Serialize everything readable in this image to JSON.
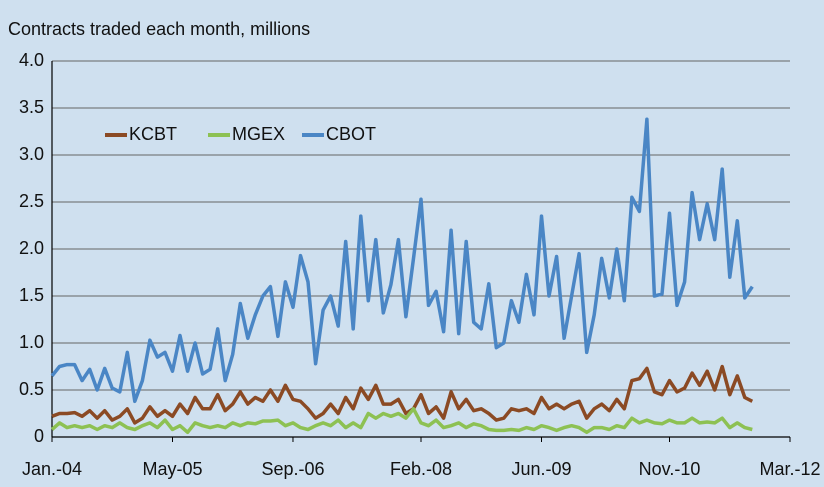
{
  "chart_data": {
    "type": "line",
    "title": "Contracts traded each month, millions",
    "x": [
      "2004-01",
      "2004-02",
      "2004-03",
      "2004-04",
      "2004-05",
      "2004-06",
      "2004-07",
      "2004-08",
      "2004-09",
      "2004-10",
      "2004-11",
      "2004-12",
      "2005-01",
      "2005-02",
      "2005-03",
      "2005-04",
      "2005-05",
      "2005-06",
      "2005-07",
      "2005-08",
      "2005-09",
      "2005-10",
      "2005-11",
      "2005-12",
      "2006-01",
      "2006-02",
      "2006-03",
      "2006-04",
      "2006-05",
      "2006-06",
      "2006-07",
      "2006-08",
      "2006-09",
      "2006-10",
      "2006-11",
      "2006-12",
      "2007-01",
      "2007-02",
      "2007-03",
      "2007-04",
      "2007-05",
      "2007-06",
      "2007-07",
      "2007-08",
      "2007-09",
      "2007-10",
      "2007-11",
      "2007-12",
      "2008-01",
      "2008-02",
      "2008-03",
      "2008-04",
      "2008-05",
      "2008-06",
      "2008-07",
      "2008-08",
      "2008-09",
      "2008-10",
      "2008-11",
      "2008-12",
      "2009-01",
      "2009-02",
      "2009-03",
      "2009-04",
      "2009-05",
      "2009-06",
      "2009-07",
      "2009-08",
      "2009-09",
      "2009-10",
      "2009-11",
      "2009-12",
      "2010-01",
      "2010-02",
      "2010-03",
      "2010-04",
      "2010-05",
      "2010-06",
      "2010-07",
      "2010-08",
      "2010-09",
      "2010-10",
      "2010-11",
      "2010-12",
      "2011-01",
      "2011-02",
      "2011-03",
      "2011-04",
      "2011-05",
      "2011-06",
      "2011-07",
      "2011-08",
      "2011-09",
      "2011-10"
    ],
    "series": [
      {
        "name": "KCBT",
        "color": "#8b4a24",
        "values": [
          0.22,
          0.25,
          0.25,
          0.26,
          0.22,
          0.28,
          0.2,
          0.28,
          0.18,
          0.22,
          0.3,
          0.15,
          0.2,
          0.32,
          0.22,
          0.28,
          0.22,
          0.35,
          0.25,
          0.42,
          0.3,
          0.3,
          0.45,
          0.28,
          0.35,
          0.48,
          0.35,
          0.42,
          0.38,
          0.5,
          0.38,
          0.55,
          0.4,
          0.38,
          0.3,
          0.2,
          0.25,
          0.35,
          0.25,
          0.42,
          0.3,
          0.52,
          0.4,
          0.55,
          0.35,
          0.35,
          0.4,
          0.25,
          0.3,
          0.45,
          0.25,
          0.32,
          0.2,
          0.48,
          0.3,
          0.4,
          0.28,
          0.3,
          0.25,
          0.18,
          0.2,
          0.3,
          0.28,
          0.3,
          0.25,
          0.42,
          0.3,
          0.35,
          0.3,
          0.35,
          0.38,
          0.2,
          0.3,
          0.35,
          0.28,
          0.4,
          0.3,
          0.6,
          0.62,
          0.73,
          0.48,
          0.45,
          0.6,
          0.48,
          0.52,
          0.68,
          0.55,
          0.7,
          0.5,
          0.75,
          0.45,
          0.65,
          0.42,
          0.38
        ]
      },
      {
        "name": "MGEX",
        "color": "#8dc153",
        "values": [
          0.08,
          0.15,
          0.1,
          0.12,
          0.1,
          0.12,
          0.08,
          0.12,
          0.1,
          0.15,
          0.1,
          0.08,
          0.12,
          0.15,
          0.1,
          0.18,
          0.08,
          0.12,
          0.05,
          0.15,
          0.12,
          0.1,
          0.12,
          0.1,
          0.15,
          0.12,
          0.15,
          0.14,
          0.17,
          0.17,
          0.18,
          0.12,
          0.15,
          0.1,
          0.08,
          0.12,
          0.15,
          0.12,
          0.18,
          0.1,
          0.15,
          0.1,
          0.25,
          0.2,
          0.25,
          0.22,
          0.25,
          0.2,
          0.3,
          0.15,
          0.12,
          0.18,
          0.1,
          0.12,
          0.15,
          0.1,
          0.14,
          0.12,
          0.08,
          0.07,
          0.07,
          0.08,
          0.07,
          0.1,
          0.08,
          0.12,
          0.1,
          0.07,
          0.1,
          0.12,
          0.1,
          0.05,
          0.1,
          0.1,
          0.08,
          0.12,
          0.1,
          0.2,
          0.15,
          0.18,
          0.15,
          0.14,
          0.18,
          0.15,
          0.15,
          0.2,
          0.15,
          0.16,
          0.15,
          0.2,
          0.1,
          0.15,
          0.1,
          0.08
        ]
      },
      {
        "name": "CBOT",
        "color": "#4a86c5",
        "values": [
          0.65,
          0.75,
          0.77,
          0.77,
          0.6,
          0.72,
          0.5,
          0.73,
          0.52,
          0.48,
          0.9,
          0.38,
          0.6,
          1.03,
          0.85,
          0.9,
          0.7,
          1.08,
          0.7,
          1.0,
          0.67,
          0.72,
          1.15,
          0.6,
          0.88,
          1.42,
          1.05,
          1.3,
          1.5,
          1.6,
          1.07,
          1.65,
          1.38,
          1.93,
          1.65,
          0.78,
          1.35,
          1.5,
          1.18,
          2.08,
          1.15,
          2.35,
          1.45,
          2.1,
          1.32,
          1.62,
          2.1,
          1.28,
          1.9,
          2.53,
          1.4,
          1.55,
          1.12,
          2.2,
          1.1,
          2.08,
          1.22,
          1.15,
          1.63,
          0.95,
          1.0,
          1.45,
          1.22,
          1.73,
          1.3,
          2.35,
          1.5,
          1.92,
          1.05,
          1.5,
          1.95,
          0.9,
          1.3,
          1.9,
          1.48,
          2.0,
          1.45,
          2.55,
          2.4,
          3.38,
          1.5,
          1.52,
          2.38,
          1.4,
          1.65,
          2.6,
          2.1,
          2.48,
          2.1,
          2.85,
          1.7,
          2.3,
          1.48,
          1.6
        ]
      }
    ],
    "xlim": [
      "2004-01",
      "2012-03"
    ],
    "xticks": [
      {
        "value": "2004-01",
        "label": "Jan.-04"
      },
      {
        "value": "2005-05",
        "label": "May-05"
      },
      {
        "value": "2006-09",
        "label": "Sep.-06"
      },
      {
        "value": "2008-02",
        "label": "Feb.-08"
      },
      {
        "value": "2009-06",
        "label": "Jun.-09"
      },
      {
        "value": "2010-11",
        "label": "Nov.-10"
      },
      {
        "value": "2012-03",
        "label": "Mar.-12"
      }
    ],
    "ylim": [
      0,
      4
    ],
    "yticks": [
      0,
      0.5,
      {
        "value": 1,
        "label": "1.0"
      },
      1.5,
      {
        "value": 2,
        "label": "2.0"
      },
      2.5,
      {
        "value": 3,
        "label": "3.0"
      },
      3.5,
      {
        "value": 4,
        "label": "4.0"
      }
    ],
    "grid": true
  }
}
